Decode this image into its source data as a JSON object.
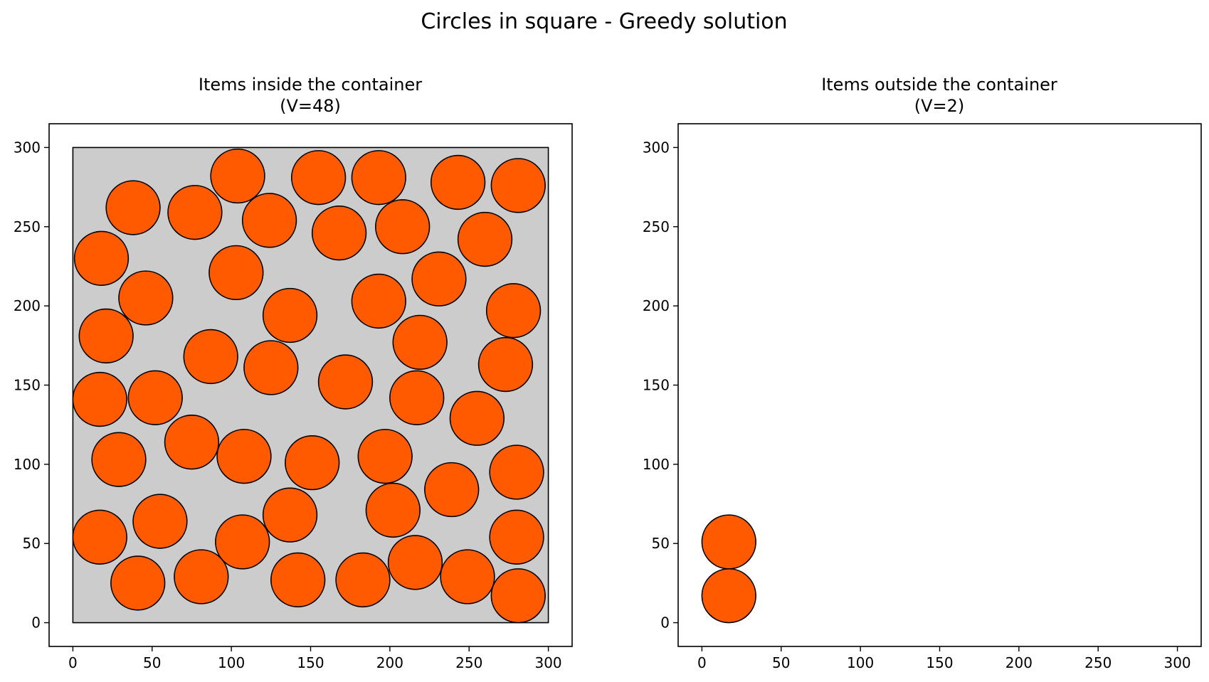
{
  "suptitle": "Circles in square - Greedy solution",
  "colors": {
    "circle_fill": "#ff5a00",
    "container_fill": "#cccccc",
    "edge": "#000000"
  },
  "chart_data": [
    {
      "type": "scatter",
      "title": [
        "Items inside the container",
        "(V=48)"
      ],
      "xlim": [
        -15,
        315
      ],
      "ylim": [
        -15,
        315
      ],
      "xticks": [
        0,
        50,
        100,
        150,
        200,
        250,
        300
      ],
      "yticks": [
        0,
        50,
        100,
        150,
        200,
        250,
        300
      ],
      "container": {
        "x": [
          0,
          300
        ],
        "y": [
          0,
          300
        ]
      },
      "radius": 17,
      "circles": [
        [
          104,
          282
        ],
        [
          155,
          281
        ],
        [
          193,
          281
        ],
        [
          243,
          278
        ],
        [
          281,
          276
        ],
        [
          38,
          262
        ],
        [
          77,
          259
        ],
        [
          124,
          254
        ],
        [
          168,
          246
        ],
        [
          208,
          250
        ],
        [
          260,
          242
        ],
        [
          18,
          230
        ],
        [
          103,
          221
        ],
        [
          231,
          217
        ],
        [
          46,
          205
        ],
        [
          137,
          194
        ],
        [
          193,
          203
        ],
        [
          278,
          197
        ],
        [
          21,
          181
        ],
        [
          87,
          168
        ],
        [
          219,
          177
        ],
        [
          125,
          161
        ],
        [
          172,
          152
        ],
        [
          273,
          163
        ],
        [
          17,
          141
        ],
        [
          52,
          142
        ],
        [
          217,
          142
        ],
        [
          255,
          129
        ],
        [
          29,
          103
        ],
        [
          75,
          114
        ],
        [
          108,
          105
        ],
        [
          151,
          101
        ],
        [
          197,
          105
        ],
        [
          280,
          95
        ],
        [
          239,
          84
        ],
        [
          202,
          71
        ],
        [
          137,
          68
        ],
        [
          55,
          64
        ],
        [
          17,
          54
        ],
        [
          107,
          51
        ],
        [
          280,
          54
        ],
        [
          216,
          38
        ],
        [
          41,
          25
        ],
        [
          81,
          29
        ],
        [
          142,
          27
        ],
        [
          183,
          27
        ],
        [
          249,
          29
        ],
        [
          281,
          17
        ]
      ]
    },
    {
      "type": "scatter",
      "title": [
        "Items outside the container",
        "(V=2)"
      ],
      "xlim": [
        -15,
        315
      ],
      "ylim": [
        -15,
        315
      ],
      "xticks": [
        0,
        50,
        100,
        150,
        200,
        250,
        300
      ],
      "yticks": [
        0,
        50,
        100,
        150,
        200,
        250,
        300
      ],
      "radius": 17,
      "circles": [
        [
          17,
          51
        ],
        [
          17,
          17
        ]
      ]
    }
  ]
}
